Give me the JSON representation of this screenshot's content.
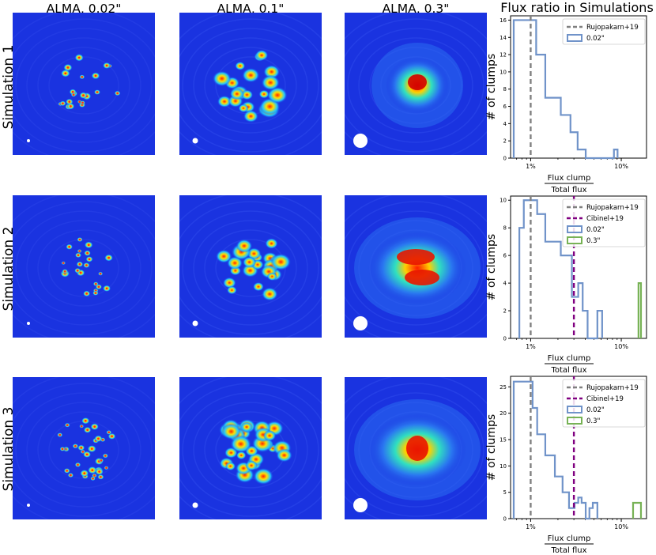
{
  "figure": {
    "column_titles": [
      "ALMA, 0.02\"",
      "ALMA, 0.1\"",
      "ALMA, 0.3\"",
      "Flux ratio in Simulations"
    ],
    "row_labels": [
      "Simulation 1",
      "Simulation 2",
      "Simulation 3"
    ],
    "colors": {
      "background_blue": "#1a33e0",
      "rujopakarn": "#808080",
      "cibinel": "#800080",
      "series_002": "#7093c9",
      "series_03": "#77b255"
    }
  },
  "chart_data": [
    {
      "type": "histogram",
      "title": "Flux ratio in Simulations",
      "xlabel_num": "Flux clump",
      "xlabel_den": "Total flux",
      "ylabel": "# of clumps",
      "xscale": "log",
      "xlim": [
        0.006,
        0.19
      ],
      "ylim": [
        0,
        16.5
      ],
      "xticks": [
        {
          "v": 0.01,
          "label": "1%"
        },
        {
          "v": 0.1,
          "label": "10%"
        }
      ],
      "yticks": [
        0,
        2,
        4,
        6,
        8,
        10,
        12,
        14,
        16
      ],
      "vlines": [
        {
          "name": "Rujopakarn+19",
          "x": 0.01,
          "color": "#808080"
        }
      ],
      "series": [
        {
          "name": "0.02\"",
          "color": "#7093c9",
          "edges": [
            0.0065,
            0.0115,
            0.0145,
            0.0215,
            0.0275,
            0.033,
            0.0405,
            0.0545,
            0.083,
            0.091
          ],
          "counts": [
            16,
            12,
            7,
            5,
            3,
            1,
            0,
            0,
            1
          ]
        }
      ],
      "legend": [
        "Rujopakarn+19",
        "0.02\""
      ]
    },
    {
      "type": "histogram",
      "xlabel_num": "Flux clump",
      "xlabel_den": "Total flux",
      "ylabel": "# of clumps",
      "xscale": "log",
      "xlim": [
        0.006,
        0.19
      ],
      "ylim": [
        0,
        10.3
      ],
      "xticks": [
        {
          "v": 0.01,
          "label": "1%"
        },
        {
          "v": 0.1,
          "label": "10%"
        }
      ],
      "yticks": [
        0,
        2,
        4,
        6,
        8,
        10
      ],
      "vlines": [
        {
          "name": "Rujopakarn+19",
          "x": 0.01,
          "color": "#808080"
        },
        {
          "name": "Cibinel+19",
          "x": 0.03,
          "color": "#800080"
        }
      ],
      "series": [
        {
          "name": "0.02\"",
          "color": "#7093c9",
          "edges": [
            0.0075,
            0.0084,
            0.0118,
            0.0145,
            0.0185,
            0.0215,
            0.0285,
            0.0335,
            0.0375,
            0.0425,
            0.0485,
            0.0545,
            0.0615
          ],
          "counts": [
            8,
            10,
            9,
            7,
            7,
            6,
            3,
            4,
            2,
            0,
            0,
            2
          ]
        },
        {
          "name": "0.3\"",
          "color": "#77b255",
          "edges": [
            0.155,
            0.165
          ],
          "counts": [
            4
          ]
        }
      ],
      "legend": [
        "Rujopakarn+19",
        "Cibinel+19",
        "0.02\"",
        "0.3\""
      ]
    },
    {
      "type": "histogram",
      "xlabel_num": "Flux clump",
      "xlabel_den": "Total flux",
      "ylabel": "# of clumps",
      "xscale": "log",
      "xlim": [
        0.006,
        0.19
      ],
      "ylim": [
        0,
        27
      ],
      "xticks": [
        {
          "v": 0.01,
          "label": "1%"
        },
        {
          "v": 0.1,
          "label": "10%"
        }
      ],
      "yticks": [
        0,
        5,
        10,
        15,
        20,
        25
      ],
      "vlines": [
        {
          "name": "Rujopakarn+19",
          "x": 0.01,
          "color": "#808080"
        },
        {
          "name": "Cibinel+19",
          "x": 0.03,
          "color": "#800080"
        }
      ],
      "series": [
        {
          "name": "0.02\"",
          "color": "#7093c9",
          "edges": [
            0.0065,
            0.0105,
            0.0118,
            0.0145,
            0.0185,
            0.0225,
            0.0265,
            0.0305,
            0.0335,
            0.0365,
            0.0405,
            0.0445,
            0.0485,
            0.0545
          ],
          "counts": [
            26,
            21,
            16,
            12,
            8,
            5,
            2,
            3,
            4,
            3,
            0,
            2,
            3
          ]
        },
        {
          "name": "0.3\"",
          "color": "#77b255",
          "edges": [
            0.135,
            0.165
          ],
          "counts": [
            3
          ]
        }
      ],
      "legend": [
        "Rujopakarn+19",
        "Cibinel+19",
        "0.02\"",
        "0.3\""
      ]
    }
  ]
}
